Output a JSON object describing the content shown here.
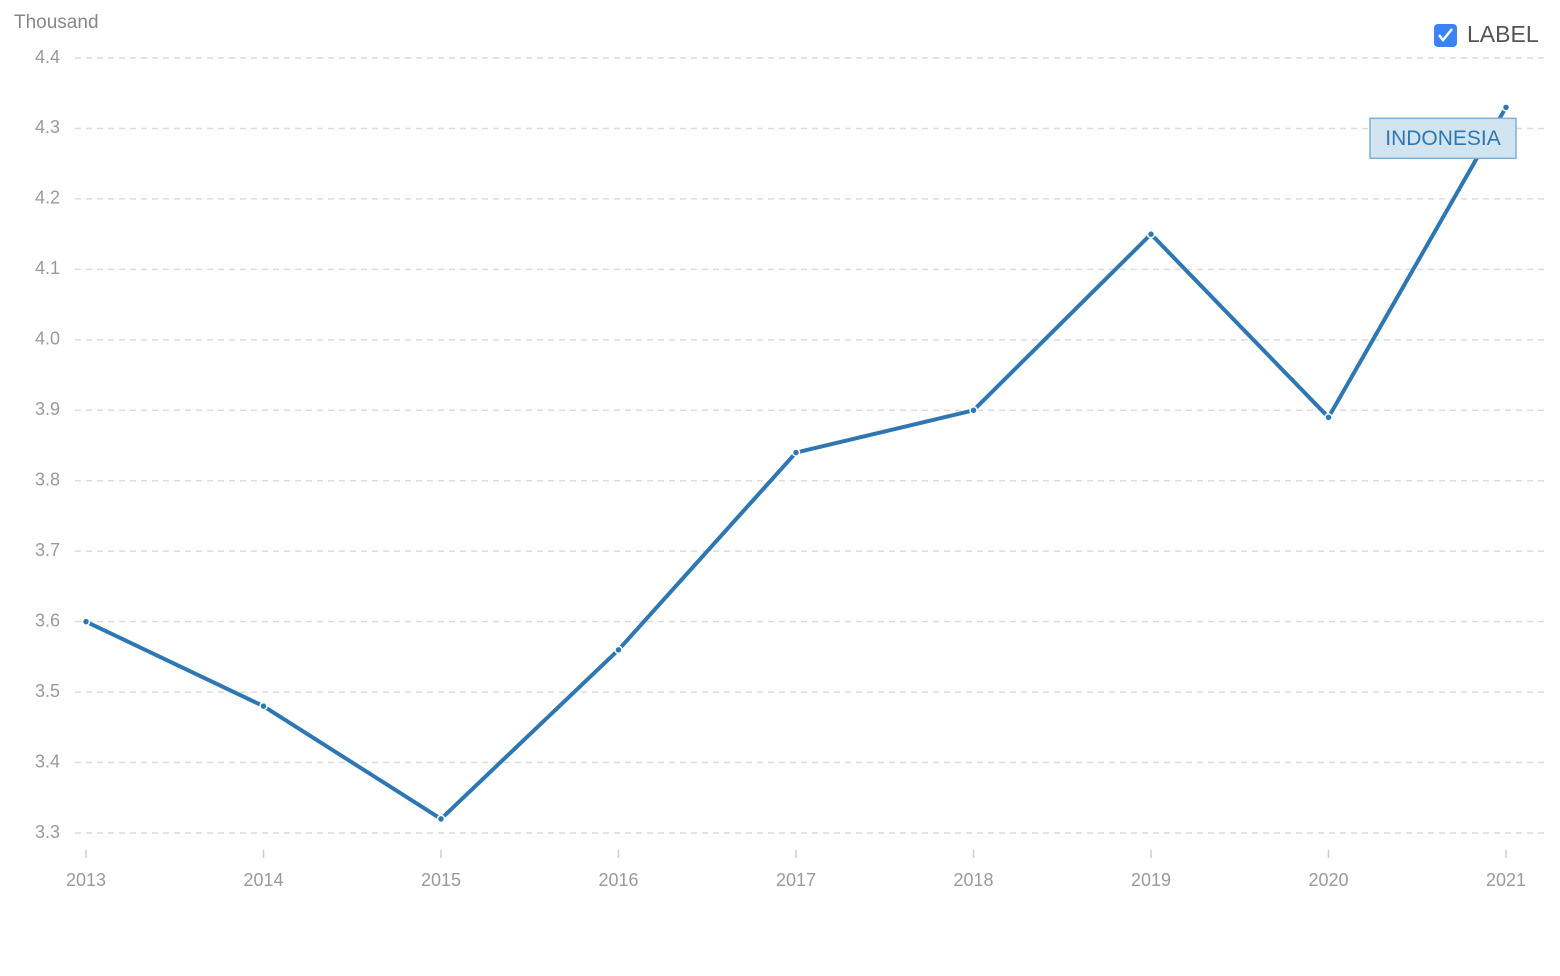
{
  "chart_data": {
    "type": "line",
    "y_label": "Thousand",
    "x": [
      2013,
      2014,
      2015,
      2016,
      2017,
      2018,
      2019,
      2020,
      2021
    ],
    "xlim": [
      2013,
      2021
    ],
    "xticks": [
      2013,
      2014,
      2015,
      2016,
      2017,
      2018,
      2019,
      2020,
      2021
    ],
    "series": [
      {
        "name": "INDONESIA",
        "color": "#2e77b3",
        "values": [
          3.6,
          3.48,
          3.32,
          3.56,
          3.84,
          3.9,
          4.15,
          3.89,
          4.33
        ]
      }
    ],
    "ylim": [
      3.3,
      4.4
    ],
    "yticks": [
      3.3,
      3.4,
      3.5,
      3.6,
      3.7,
      3.8,
      3.9,
      {
        "value": 4,
        "label": "4.0"
      },
      4.1,
      4.2,
      4.3,
      4.4
    ],
    "grid": true
  },
  "controls": {
    "label_toggle": "LABEL"
  }
}
